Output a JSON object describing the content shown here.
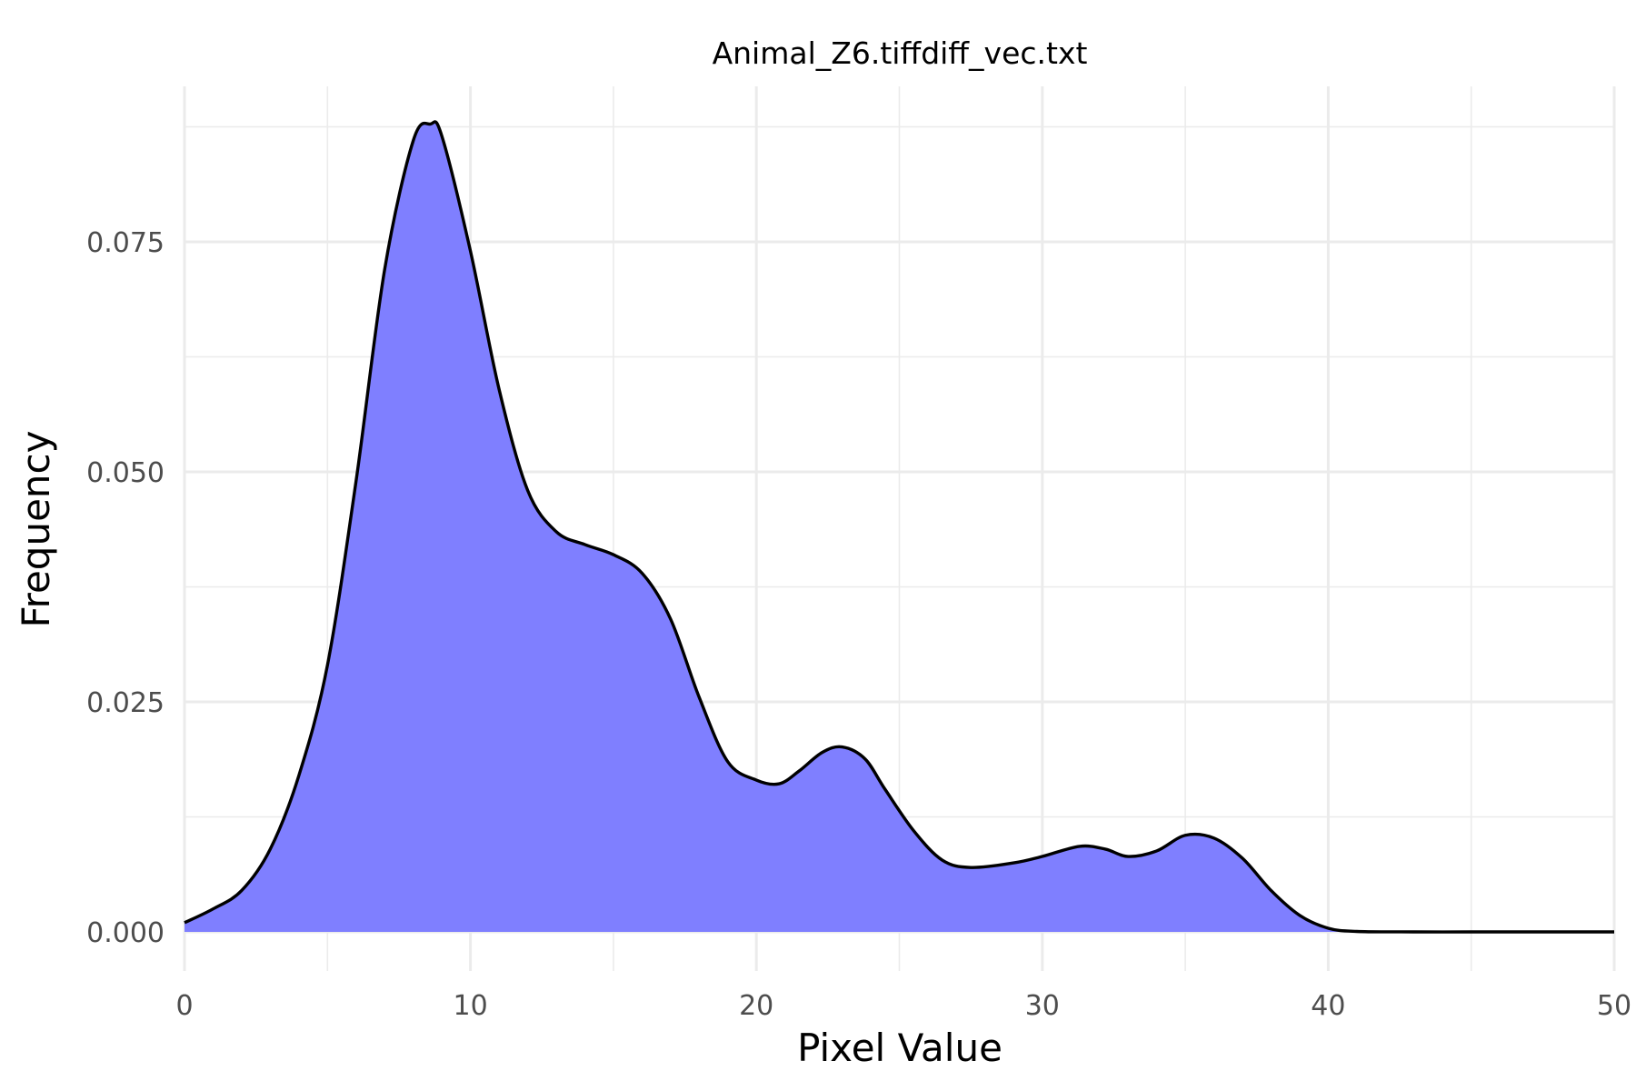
{
  "chart_data": {
    "type": "area",
    "title": "Animal_Z6.tiffdiff_vec.txt",
    "xlabel": "Pixel Value",
    "ylabel": "Frequency",
    "xlim": [
      0,
      50
    ],
    "ylim": [
      0,
      0.088
    ],
    "x_ticks": [
      0,
      10,
      20,
      30,
      40,
      50
    ],
    "x_tick_labels": [
      "0",
      "10",
      "20",
      "30",
      "40",
      "50"
    ],
    "y_ticks": [
      0,
      0.025,
      0.05,
      0.075
    ],
    "y_tick_labels": [
      "0.000",
      "0.025",
      "0.050",
      "0.075"
    ],
    "grid": true,
    "legend": "none",
    "fill_color": "#7f7fff",
    "line_color": "#000000",
    "series": [
      {
        "x": [
          0,
          1,
          2,
          3,
          4,
          5,
          6,
          7,
          8,
          8.6,
          9,
          10,
          11,
          12,
          13,
          14,
          15,
          16,
          17,
          18,
          19,
          20,
          20.8,
          21.5,
          22.3,
          23,
          23.8,
          24.5,
          25.5,
          26.5,
          27.5,
          29,
          30,
          31.3,
          32.2,
          33,
          34,
          35,
          36,
          37,
          38,
          39,
          40,
          41,
          43,
          45,
          47,
          50
        ],
        "y": [
          0.001,
          0.0025,
          0.0045,
          0.009,
          0.017,
          0.029,
          0.049,
          0.072,
          0.086,
          0.0878,
          0.0865,
          0.074,
          0.059,
          0.048,
          0.0435,
          0.0421,
          0.041,
          0.039,
          0.034,
          0.0255,
          0.0185,
          0.0165,
          0.0161,
          0.0175,
          0.0195,
          0.0201,
          0.0188,
          0.0155,
          0.011,
          0.0078,
          0.007,
          0.0075,
          0.0082,
          0.0093,
          0.009,
          0.0082,
          0.0088,
          0.0105,
          0.0102,
          0.008,
          0.0045,
          0.0018,
          0.0004,
          5e-05,
          0.0,
          0.0,
          0.0,
          0.0
        ]
      }
    ]
  }
}
